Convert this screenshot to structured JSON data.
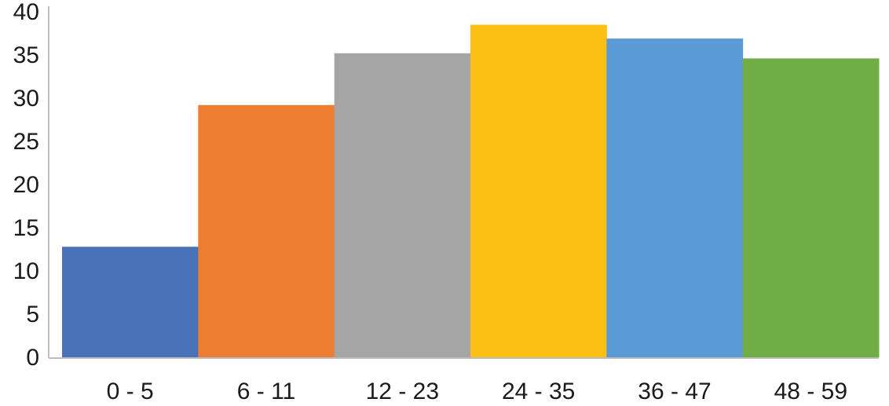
{
  "chart_data": {
    "type": "bar",
    "title": "",
    "xlabel": "",
    "ylabel": "",
    "categories": [
      "0 - 5",
      "6 - 11",
      "12 - 23",
      "24 - 35",
      "36 - 47",
      "48 - 59"
    ],
    "values": [
      12.8,
      29.2,
      35.2,
      38.5,
      36.9,
      34.6
    ],
    "colors": [
      "#4a72b8",
      "#ed7d31",
      "#a5a5a5",
      "#fbc013",
      "#5b9bd5",
      "#70ad46"
    ],
    "ylim": [
      0,
      40
    ],
    "yticks": [
      "0",
      "5",
      "10",
      "15",
      "20",
      "25",
      "30",
      "35",
      "40"
    ],
    "grid": false,
    "legend": "none"
  }
}
